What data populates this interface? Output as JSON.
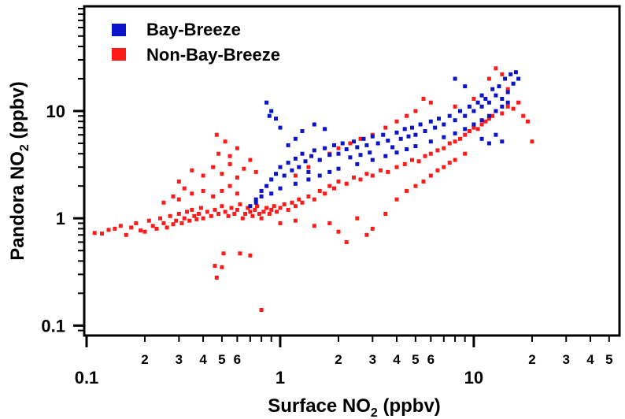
{
  "chart_data": {
    "type": "scatter",
    "x_scale": "log",
    "y_scale": "log",
    "xlim": [
      0.1,
      55
    ],
    "ylim": [
      0.085,
      90
    ],
    "grid": false,
    "legend_placement": "top-left",
    "xlabel": {
      "text": "Surface NO",
      "sub": "2",
      "suffix": " (ppbv)"
    },
    "ylabel": {
      "text": "Pandora NO",
      "sub": "2",
      "suffix": " (ppbv)"
    },
    "x_tick_major_labels": [
      {
        "value": 0.1,
        "label": "0.1"
      },
      {
        "value": 1,
        "label": "1"
      },
      {
        "value": 10,
        "label": "10"
      }
    ],
    "x_tick_minor_labels": [
      {
        "value": 0.2,
        "label": "2"
      },
      {
        "value": 0.3,
        "label": "3"
      },
      {
        "value": 0.4,
        "label": "4"
      },
      {
        "value": 0.5,
        "label": "5"
      },
      {
        "value": 0.6,
        "label": "6"
      },
      {
        "value": 2,
        "label": "2"
      },
      {
        "value": 3,
        "label": "3"
      },
      {
        "value": 4,
        "label": "4"
      },
      {
        "value": 5,
        "label": "5"
      },
      {
        "value": 6,
        "label": "6"
      },
      {
        "value": 20,
        "label": "2"
      },
      {
        "value": 30,
        "label": "3"
      },
      {
        "value": 40,
        "label": "4"
      },
      {
        "value": 50,
        "label": "5"
      }
    ],
    "y_tick_major_labels": [
      {
        "value": 0.1,
        "label": "0.1"
      },
      {
        "value": 1,
        "label": "1"
      },
      {
        "value": 10,
        "label": "10"
      }
    ],
    "series": [
      {
        "name": "Non-Bay-Breeze",
        "color": "#ff1a1a",
        "points": [
          [
            0.11,
            0.73
          ],
          [
            0.12,
            0.72
          ],
          [
            0.13,
            0.78
          ],
          [
            0.14,
            0.8
          ],
          [
            0.15,
            0.85
          ],
          [
            0.16,
            0.7
          ],
          [
            0.17,
            0.82
          ],
          [
            0.18,
            0.9
          ],
          [
            0.19,
            0.77
          ],
          [
            0.2,
            0.75
          ],
          [
            0.21,
            0.95
          ],
          [
            0.22,
            0.85
          ],
          [
            0.23,
            0.8
          ],
          [
            0.24,
            1.0
          ],
          [
            0.25,
            0.9
          ],
          [
            0.26,
            0.82
          ],
          [
            0.27,
            1.05
          ],
          [
            0.28,
            0.88
          ],
          [
            0.29,
            0.95
          ],
          [
            0.3,
            1.1
          ],
          [
            0.31,
            0.9
          ],
          [
            0.32,
            1.0
          ],
          [
            0.33,
            1.15
          ],
          [
            0.34,
            0.95
          ],
          [
            0.35,
            1.2
          ],
          [
            0.36,
            1.05
          ],
          [
            0.37,
            0.98
          ],
          [
            0.38,
            1.1
          ],
          [
            0.39,
            1.25
          ],
          [
            0.4,
            1.0
          ],
          [
            0.42,
            1.15
          ],
          [
            0.44,
            1.05
          ],
          [
            0.46,
            1.2
          ],
          [
            0.48,
            1.1
          ],
          [
            0.5,
            1.3
          ],
          [
            0.52,
            1.15
          ],
          [
            0.54,
            1.05
          ],
          [
            0.56,
            1.25
          ],
          [
            0.58,
            1.1
          ],
          [
            0.6,
            1.2
          ],
          [
            0.62,
            1.35
          ],
          [
            0.64,
            1.0
          ],
          [
            0.66,
            1.1
          ],
          [
            0.68,
            1.25
          ],
          [
            0.7,
            1.15
          ],
          [
            0.72,
            1.05
          ],
          [
            0.74,
            1.2
          ],
          [
            0.76,
            1.3
          ],
          [
            0.78,
            1.1
          ],
          [
            0.8,
            1.0
          ],
          [
            0.82,
            1.15
          ],
          [
            0.85,
            1.25
          ],
          [
            0.88,
            1.1
          ],
          [
            0.9,
            1.2
          ],
          [
            0.93,
            1.3
          ],
          [
            0.96,
            1.15
          ],
          [
            1.0,
            1.25
          ],
          [
            1.05,
            1.35
          ],
          [
            1.1,
            1.2
          ],
          [
            1.15,
            1.4
          ],
          [
            1.2,
            1.3
          ],
          [
            1.25,
            1.5
          ],
          [
            1.3,
            1.4
          ],
          [
            1.4,
            1.6
          ],
          [
            1.5,
            1.5
          ],
          [
            1.6,
            1.8
          ],
          [
            1.7,
            1.7
          ],
          [
            1.8,
            2.0
          ],
          [
            1.9,
            1.9
          ],
          [
            2.0,
            2.2
          ],
          [
            2.2,
            2.1
          ],
          [
            2.4,
            2.4
          ],
          [
            2.6,
            2.3
          ],
          [
            2.8,
            2.6
          ],
          [
            3.0,
            2.5
          ],
          [
            3.3,
            2.8
          ],
          [
            3.6,
            2.7
          ],
          [
            4.0,
            3.0
          ],
          [
            4.4,
            3.2
          ],
          [
            4.8,
            3.5
          ],
          [
            5.2,
            3.4
          ],
          [
            5.6,
            3.8
          ],
          [
            6.0,
            4.0
          ],
          [
            6.5,
            4.3
          ],
          [
            7.0,
            4.5
          ],
          [
            7.5,
            5.0
          ],
          [
            8.0,
            5.2
          ],
          [
            8.5,
            5.5
          ],
          [
            9.0,
            6.0
          ],
          [
            9.5,
            6.5
          ],
          [
            10.0,
            7.0
          ],
          [
            10.5,
            6.8
          ],
          [
            11.0,
            7.5
          ],
          [
            11.5,
            8.0
          ],
          [
            12.0,
            8.5
          ],
          [
            12.5,
            9.0
          ],
          [
            13.0,
            10.0
          ],
          [
            14.0,
            9.5
          ],
          [
            15.0,
            11.0
          ],
          [
            16.0,
            10.5
          ],
          [
            17.0,
            12.0
          ],
          [
            18.0,
            9.0
          ],
          [
            19.0,
            8.0
          ],
          [
            20.0,
            5.2
          ],
          [
            0.3,
            2.2
          ],
          [
            0.35,
            2.8
          ],
          [
            0.4,
            2.5
          ],
          [
            0.45,
            3.0
          ],
          [
            0.5,
            2.6
          ],
          [
            0.55,
            3.2
          ],
          [
            0.6,
            2.4
          ],
          [
            0.65,
            2.9
          ],
          [
            0.7,
            3.5
          ],
          [
            0.75,
            2.7
          ],
          [
            0.5,
            1.8
          ],
          [
            0.55,
            2.0
          ],
          [
            0.6,
            1.7
          ],
          [
            0.45,
            1.6
          ],
          [
            0.4,
            1.8
          ],
          [
            0.35,
            1.7
          ],
          [
            0.3,
            1.5
          ],
          [
            0.25,
            1.4
          ],
          [
            0.28,
            1.6
          ],
          [
            0.32,
            1.9
          ],
          [
            0.47,
            6.0
          ],
          [
            0.52,
            5.2
          ],
          [
            0.48,
            4.0
          ],
          [
            0.6,
            4.5
          ],
          [
            0.55,
            3.8
          ],
          [
            0.47,
            0.28
          ],
          [
            0.5,
            0.35
          ],
          [
            0.46,
            0.36
          ],
          [
            0.51,
            0.47
          ],
          [
            0.62,
            0.47
          ],
          [
            0.7,
            0.45
          ],
          [
            0.8,
            0.14
          ],
          [
            1.0,
            0.9
          ],
          [
            1.2,
            0.95
          ],
          [
            1.5,
            0.85
          ],
          [
            1.8,
            0.9
          ],
          [
            2.0,
            0.75
          ],
          [
            2.5,
            1.0
          ],
          [
            3.0,
            0.8
          ],
          [
            2.2,
            0.6
          ],
          [
            2.8,
            0.7
          ],
          [
            3.5,
            1.1
          ],
          [
            4.0,
            1.5
          ],
          [
            4.5,
            1.8
          ],
          [
            5.0,
            2.0
          ],
          [
            5.5,
            2.2
          ],
          [
            6.0,
            2.5
          ],
          [
            6.5,
            2.8
          ],
          [
            7.0,
            3.0
          ],
          [
            7.5,
            3.3
          ],
          [
            8.0,
            3.5
          ],
          [
            9.0,
            4.0
          ],
          [
            1.2,
            2.5
          ],
          [
            1.4,
            3.0
          ],
          [
            1.6,
            3.5
          ],
          [
            1.8,
            4.0
          ],
          [
            2.0,
            4.5
          ],
          [
            2.3,
            5.0
          ],
          [
            2.6,
            5.5
          ],
          [
            3.0,
            6.0
          ],
          [
            3.5,
            7.0
          ],
          [
            4.0,
            8.0
          ],
          [
            4.5,
            9.0
          ],
          [
            5.0,
            10.0
          ],
          [
            5.5,
            13.0
          ],
          [
            6.0,
            12.0
          ],
          [
            8.0,
            11.0
          ],
          [
            10.0,
            13.0
          ],
          [
            12.0,
            20.0
          ],
          [
            13.0,
            25.0
          ],
          [
            14.0,
            22.0
          ],
          [
            15.0,
            16.0
          ]
        ]
      },
      {
        "name": "Bay-Breeze",
        "color": "#0a14c8",
        "points": [
          [
            0.75,
            1.5
          ],
          [
            0.8,
            1.8
          ],
          [
            0.85,
            2.0
          ],
          [
            0.9,
            2.3
          ],
          [
            0.95,
            2.6
          ],
          [
            1.0,
            3.0
          ],
          [
            1.05,
            2.5
          ],
          [
            1.1,
            3.3
          ],
          [
            1.15,
            2.8
          ],
          [
            1.2,
            3.6
          ],
          [
            1.25,
            3.0
          ],
          [
            1.3,
            4.0
          ],
          [
            1.35,
            3.4
          ],
          [
            1.4,
            2.7
          ],
          [
            1.45,
            3.8
          ],
          [
            1.5,
            4.3
          ],
          [
            1.6,
            3.5
          ],
          [
            1.7,
            4.5
          ],
          [
            1.8,
            3.9
          ],
          [
            1.9,
            4.8
          ],
          [
            2.0,
            4.0
          ],
          [
            2.1,
            5.0
          ],
          [
            2.2,
            4.4
          ],
          [
            2.3,
            3.7
          ],
          [
            2.4,
            5.2
          ],
          [
            2.5,
            4.6
          ],
          [
            2.6,
            3.9
          ],
          [
            2.7,
            5.5
          ],
          [
            2.8,
            4.8
          ],
          [
            2.9,
            4.1
          ],
          [
            3.0,
            5.8
          ],
          [
            3.2,
            5.0
          ],
          [
            3.4,
            6.0
          ],
          [
            3.6,
            5.3
          ],
          [
            3.8,
            4.6
          ],
          [
            4.0,
            6.3
          ],
          [
            4.2,
            5.5
          ],
          [
            4.4,
            6.8
          ],
          [
            4.6,
            5.8
          ],
          [
            4.8,
            7.0
          ],
          [
            5.0,
            6.0
          ],
          [
            5.3,
            7.5
          ],
          [
            5.6,
            6.5
          ],
          [
            6.0,
            8.0
          ],
          [
            6.3,
            7.0
          ],
          [
            6.6,
            8.5
          ],
          [
            7.0,
            7.5
          ],
          [
            7.5,
            9.0
          ],
          [
            8.0,
            8.2
          ],
          [
            8.5,
            10.0
          ],
          [
            9.0,
            9.0
          ],
          [
            9.5,
            11.0
          ],
          [
            10.0,
            10.0
          ],
          [
            10.5,
            12.0
          ],
          [
            11.0,
            11.0
          ],
          [
            11.5,
            13.0
          ],
          [
            12.0,
            12.0
          ],
          [
            13.0,
            14.0
          ],
          [
            14.0,
            13.0
          ],
          [
            15.0,
            15.0
          ],
          [
            16.0,
            18.0
          ],
          [
            17.0,
            20.0
          ],
          [
            15.5,
            22.0
          ],
          [
            16.5,
            23.0
          ],
          [
            14.5,
            20.0
          ],
          [
            13.5,
            17.0
          ],
          [
            12.5,
            16.0
          ],
          [
            11.0,
            14.0
          ],
          [
            9.0,
            17.0
          ],
          [
            8.0,
            20.0
          ],
          [
            0.85,
            12.0
          ],
          [
            0.9,
            10.0
          ],
          [
            0.95,
            8.5
          ],
          [
            1.0,
            7.0
          ],
          [
            0.88,
            9.0
          ],
          [
            1.3,
            6.5
          ],
          [
            1.5,
            7.5
          ],
          [
            1.7,
            6.8
          ],
          [
            1.2,
            5.5
          ],
          [
            1.1,
            4.8
          ],
          [
            0.7,
            1.3
          ],
          [
            0.75,
            1.4
          ],
          [
            0.8,
            1.6
          ],
          [
            0.9,
            1.7
          ],
          [
            1.0,
            1.9
          ],
          [
            1.2,
            2.1
          ],
          [
            1.4,
            2.3
          ],
          [
            1.6,
            2.5
          ],
          [
            1.8,
            2.7
          ],
          [
            2.0,
            2.9
          ],
          [
            2.5,
            3.2
          ],
          [
            3.0,
            3.5
          ],
          [
            3.5,
            3.8
          ],
          [
            4.0,
            4.1
          ],
          [
            4.5,
            4.4
          ],
          [
            5.0,
            4.7
          ],
          [
            6.0,
            5.2
          ],
          [
            7.0,
            5.7
          ],
          [
            8.0,
            6.2
          ],
          [
            9.0,
            6.8
          ],
          [
            10.0,
            7.5
          ],
          [
            11.0,
            8.2
          ],
          [
            12.0,
            9.0
          ],
          [
            13.0,
            10.0
          ],
          [
            14.0,
            11.0
          ],
          [
            15.0,
            12.0
          ],
          [
            12.0,
            5.0
          ],
          [
            13.0,
            6.0
          ],
          [
            11.0,
            5.5
          ],
          [
            14.0,
            5.2
          ]
        ]
      }
    ]
  }
}
